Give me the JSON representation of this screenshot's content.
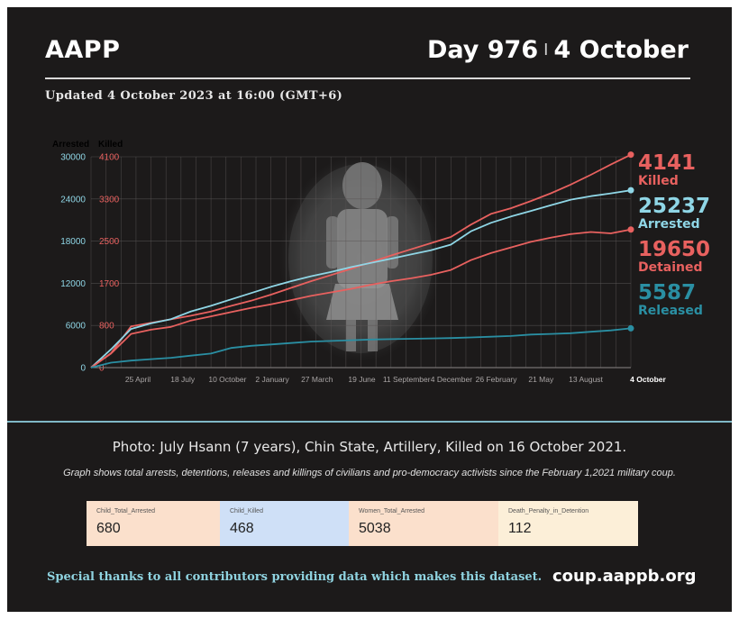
{
  "header": {
    "org": "AAPP",
    "day": "Day 976",
    "separator": "I",
    "date": "4 October",
    "updated": "Updated 4 October 2023 at 16:00 (GMT+6)"
  },
  "colors": {
    "killed": "#e8615f",
    "arrested": "#8fd6e6",
    "detained": "#e8615f",
    "released": "#2a8fa3"
  },
  "photo": {
    "subject": "child-portrait-photo"
  },
  "chart_data": {
    "type": "line",
    "title": "",
    "left_axis": {
      "label": "Arrested",
      "ticks": [
        0,
        6000,
        12000,
        18000,
        24000,
        30000
      ],
      "ylim": [
        0,
        30000
      ]
    },
    "right_axis": {
      "label": "Killed",
      "ticks": [
        0,
        800,
        1700,
        2500,
        3300,
        4100
      ],
      "ylim": [
        0,
        4100
      ]
    },
    "x_ticks": [
      "25 April",
      "18 July",
      "10 October",
      "2 January",
      "27 March",
      "19 June",
      "11 September",
      "4 December",
      "26 February",
      "21 May",
      "13 August",
      "4 October"
    ],
    "grid": true,
    "legend_position": "right",
    "series": [
      {
        "name": "Killed",
        "axis": "right",
        "final_value": 4141,
        "values": [
          0,
          280,
          800,
          870,
          940,
          1010,
          1090,
          1200,
          1300,
          1420,
          1550,
          1680,
          1800,
          1920,
          2050,
          2180,
          2300,
          2420,
          2540,
          2780,
          2990,
          3100,
          3240,
          3390,
          3560,
          3750,
          3950,
          4141
        ]
      },
      {
        "name": "Arrested",
        "axis": "left",
        "final_value": 25237,
        "values": [
          0,
          2600,
          5500,
          6300,
          6900,
          8000,
          8800,
          9700,
          10600,
          11500,
          12300,
          13000,
          13600,
          14300,
          14900,
          15500,
          16100,
          16700,
          17500,
          19400,
          20600,
          21500,
          22300,
          23100,
          23900,
          24400,
          24800,
          25237
        ]
      },
      {
        "name": "Detained",
        "axis": "left",
        "final_value": 19650,
        "values": [
          0,
          2000,
          4800,
          5400,
          5800,
          6700,
          7300,
          7900,
          8500,
          9000,
          9600,
          10200,
          10700,
          11200,
          11800,
          12300,
          12700,
          13200,
          13900,
          15300,
          16300,
          17100,
          17900,
          18500,
          19000,
          19300,
          19100,
          19650
        ]
      },
      {
        "name": "Released",
        "axis": "left",
        "final_value": 5587,
        "values": [
          0,
          700,
          1000,
          1200,
          1400,
          1700,
          2000,
          2800,
          3100,
          3300,
          3500,
          3700,
          3800,
          3900,
          4000,
          4050,
          4100,
          4150,
          4200,
          4300,
          4400,
          4500,
          4700,
          4800,
          4900,
          5100,
          5300,
          5587
        ]
      }
    ]
  },
  "legend": [
    {
      "num": "4141",
      "word": "Killed"
    },
    {
      "num": "25237",
      "word": "Arrested"
    },
    {
      "num": "19650",
      "word": "Detained"
    },
    {
      "num": "5587",
      "word": "Released"
    }
  ],
  "caption": "Photo: July Hsann (7 years), Chin State, Artillery, Killed on 16 October 2021.",
  "note": "Graph shows total arrests, detentions, releases and killings of civilians and pro-democracy activists since the February 1,2021 military coup.",
  "stats": [
    {
      "label": "Child_Total_Arrested",
      "value": "680",
      "color": "#fbe0cc"
    },
    {
      "label": "Child_Killed",
      "value": "468",
      "color": "#cfe0f7"
    },
    {
      "label": "Women_Total_Arrested",
      "value": "5038",
      "color": "#fbe0cc"
    },
    {
      "label": "Death_Penalty_in_Detention",
      "value": "112",
      "color": "#fcefd8"
    }
  ],
  "footer": {
    "thanks": "Special thanks to all contributors providing data which makes this dataset.",
    "site": "coup.aappb.org"
  }
}
